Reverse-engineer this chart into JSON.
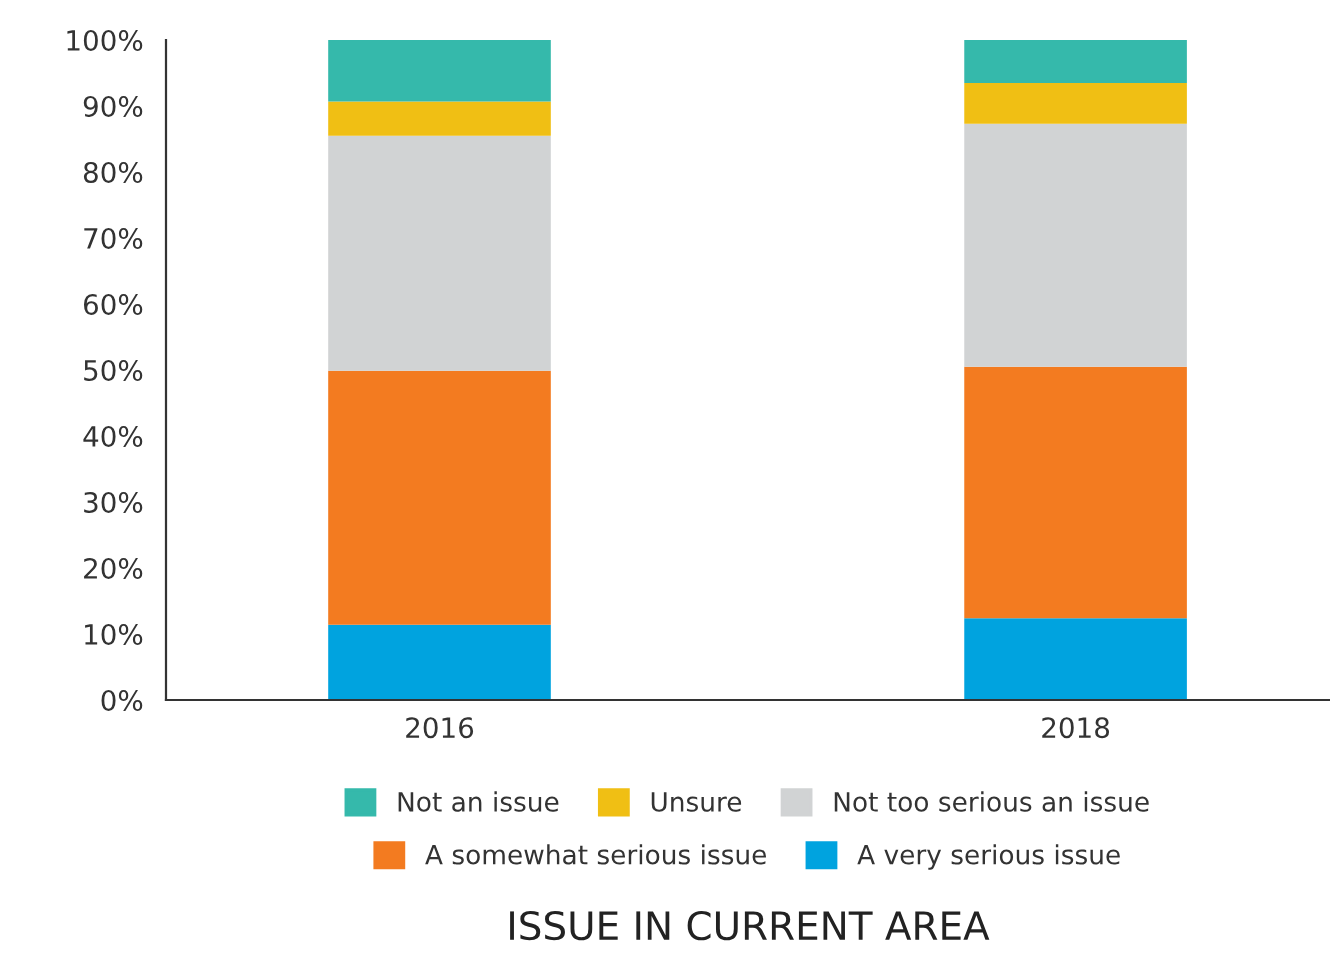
{
  "chart_data": {
    "type": "bar",
    "stacked": true,
    "xlabel": "ISSUE IN CURRENT AREA",
    "categories": [
      "2016",
      "2018"
    ],
    "series": [
      {
        "name": "A very serious issue",
        "color": "#00a3df",
        "values": [
          11.4,
          12.4
        ]
      },
      {
        "name": "A somewhat serious issue",
        "color": "#f37b20",
        "values": [
          38.5,
          38.1
        ]
      },
      {
        "name": "Not too serious an issue",
        "color": "#d1d3d4",
        "values": [
          35.6,
          36.8
        ]
      },
      {
        "name": "Unsure",
        "color": "#f0bf14",
        "values": [
          5.2,
          6.2
        ]
      },
      {
        "name": "Not an issue",
        "color": "#35b9ab",
        "values": [
          9.3,
          6.5
        ]
      }
    ],
    "ylim": [
      0,
      100
    ],
    "yticks": [
      {
        "value": 0,
        "label": "0%"
      },
      {
        "value": 10,
        "label": "10%"
      },
      {
        "value": 20,
        "label": "20%"
      },
      {
        "value": 30,
        "label": "30%"
      },
      {
        "value": 40,
        "label": "40%"
      },
      {
        "value": 50,
        "label": "50%"
      },
      {
        "value": 60,
        "label": "60%"
      },
      {
        "value": 70,
        "label": "70%"
      },
      {
        "value": 80,
        "label": "80%"
      },
      {
        "value": 90,
        "label": "90%"
      },
      {
        "value": 100,
        "label": "100%"
      }
    ],
    "grid": false,
    "legend": "bottom"
  }
}
